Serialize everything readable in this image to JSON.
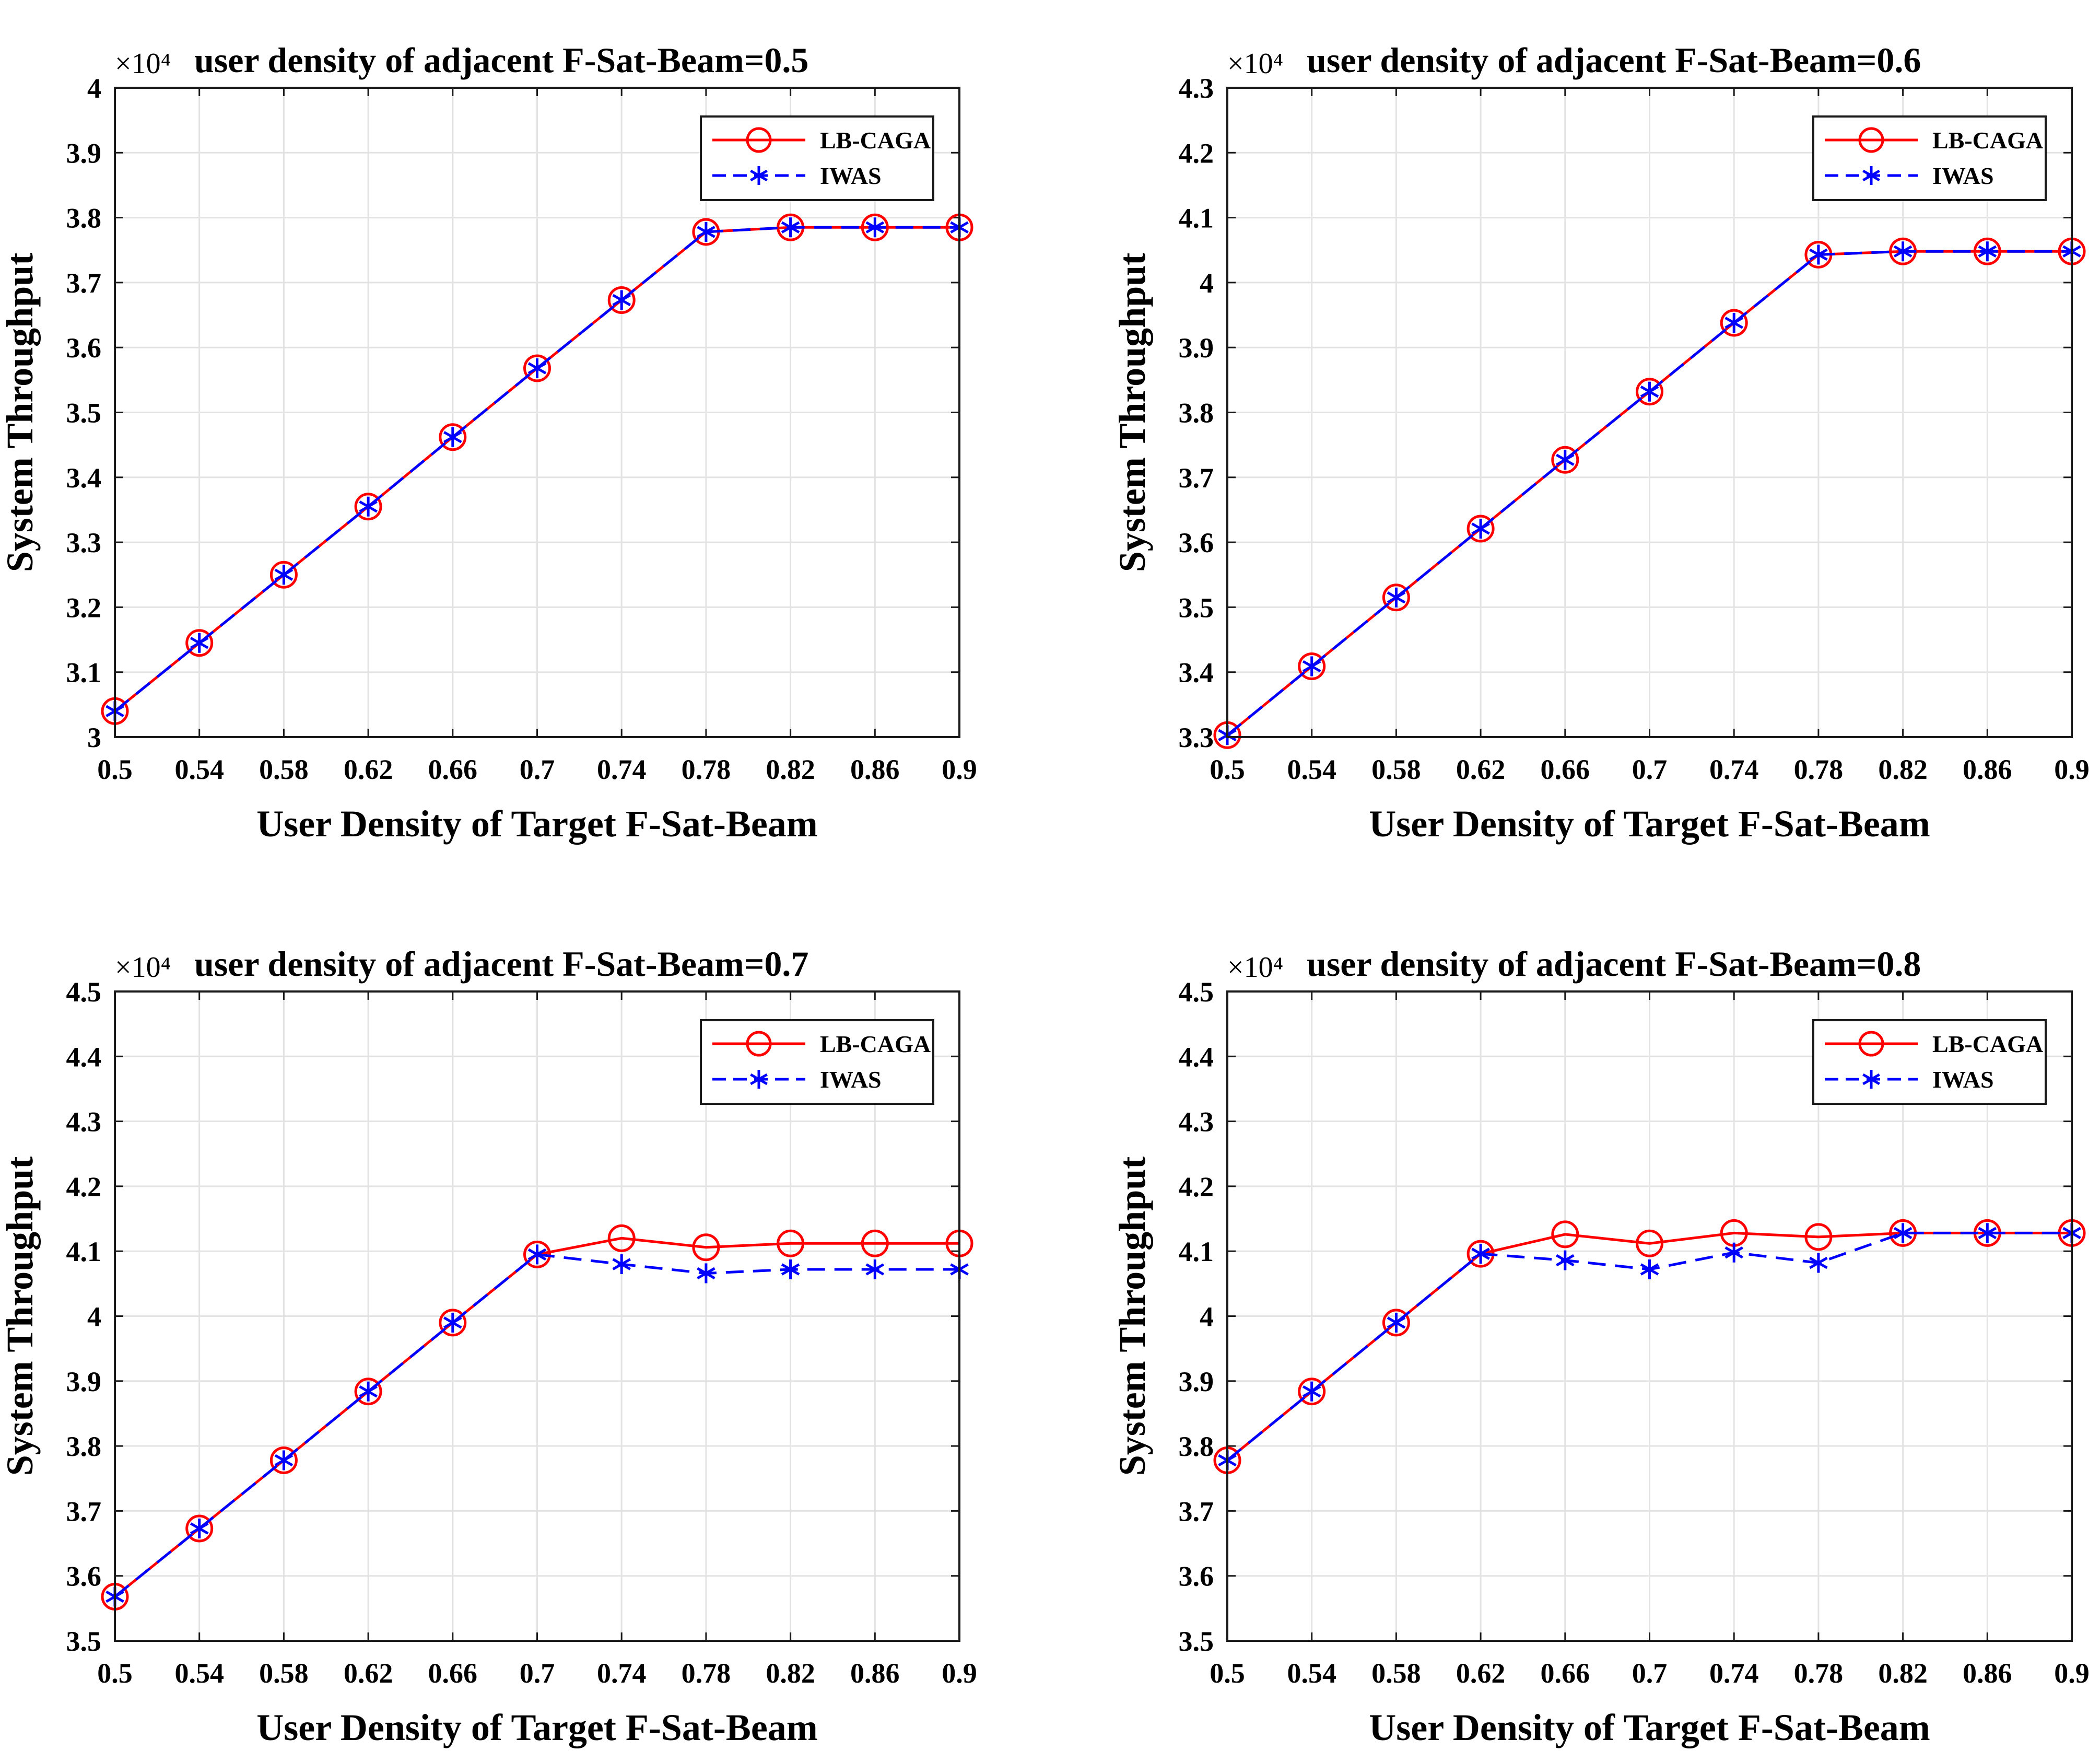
{
  "colors": {
    "lb_caga": "#ff0000",
    "iwas": "#0000ff"
  },
  "chart_data": [
    {
      "type": "line",
      "title": "user density of adjacent F-Sat-Beam=0.5",
      "exponent": "×10⁴",
      "xlabel": "User Density of Target F-Sat-Beam",
      "ylabel": "System Throughput",
      "x": [
        0.5,
        0.54,
        0.58,
        0.62,
        0.66,
        0.7,
        0.74,
        0.78,
        0.82,
        0.86,
        0.9
      ],
      "x_tick_labels": [
        "0.5",
        "0.54",
        "0.58",
        "0.62",
        "0.66",
        "0.7",
        "0.74",
        "0.78",
        "0.82",
        "0.86",
        "0.9"
      ],
      "xlim": [
        0.5,
        0.9
      ],
      "ylim": [
        3.0,
        4.0
      ],
      "y_ticks": [
        3.0,
        3.1,
        3.2,
        3.3,
        3.4,
        3.5,
        3.6,
        3.7,
        3.8,
        3.9,
        4.0
      ],
      "y_tick_labels": [
        "3",
        "3.1",
        "3.2",
        "3.3",
        "3.4",
        "3.5",
        "3.6",
        "3.7",
        "3.8",
        "3.9",
        "4"
      ],
      "grid": true,
      "legend_position": "top-right",
      "series": [
        {
          "name": "LB-CAGA",
          "color": "#ff0000",
          "style": "solid",
          "marker": "circle",
          "values": [
            3.04,
            3.145,
            3.25,
            3.355,
            3.462,
            3.568,
            3.673,
            3.778,
            3.785,
            3.785,
            3.785
          ]
        },
        {
          "name": "IWAS",
          "color": "#0000ff",
          "style": "dashed",
          "marker": "asterisk",
          "values": [
            3.04,
            3.145,
            3.25,
            3.355,
            3.462,
            3.568,
            3.673,
            3.778,
            3.785,
            3.785,
            3.785
          ]
        }
      ]
    },
    {
      "type": "line",
      "title": "user density of adjacent F-Sat-Beam=0.6",
      "exponent": "×10⁴",
      "xlabel": "User Density of Target F-Sat-Beam",
      "ylabel": "System Throughput",
      "x": [
        0.5,
        0.54,
        0.58,
        0.62,
        0.66,
        0.7,
        0.74,
        0.78,
        0.82,
        0.86,
        0.9
      ],
      "x_tick_labels": [
        "0.5",
        "0.54",
        "0.58",
        "0.62",
        "0.66",
        "0.7",
        "0.74",
        "0.78",
        "0.82",
        "0.86",
        "0.9"
      ],
      "xlim": [
        0.5,
        0.9
      ],
      "ylim": [
        3.3,
        4.3
      ],
      "y_ticks": [
        3.3,
        3.4,
        3.5,
        3.6,
        3.7,
        3.8,
        3.9,
        4.0,
        4.1,
        4.2,
        4.3
      ],
      "y_tick_labels": [
        "3.3",
        "3.4",
        "3.5",
        "3.6",
        "3.7",
        "3.8",
        "3.9",
        "4",
        "4.1",
        "4.2",
        "4.3"
      ],
      "grid": true,
      "legend_position": "top-right",
      "series": [
        {
          "name": "LB-CAGA",
          "color": "#ff0000",
          "style": "solid",
          "marker": "circle",
          "values": [
            3.303,
            3.409,
            3.515,
            3.621,
            3.727,
            3.832,
            3.938,
            4.043,
            4.048,
            4.048,
            4.048
          ]
        },
        {
          "name": "IWAS",
          "color": "#0000ff",
          "style": "dashed",
          "marker": "asterisk",
          "values": [
            3.303,
            3.409,
            3.515,
            3.621,
            3.727,
            3.832,
            3.938,
            4.043,
            4.048,
            4.048,
            4.048
          ]
        }
      ]
    },
    {
      "type": "line",
      "title": "user density of adjacent F-Sat-Beam=0.7",
      "exponent": "×10⁴",
      "xlabel": "User Density of Target F-Sat-Beam",
      "ylabel": "System Throughput",
      "x": [
        0.5,
        0.54,
        0.58,
        0.62,
        0.66,
        0.7,
        0.74,
        0.78,
        0.82,
        0.86,
        0.9
      ],
      "x_tick_labels": [
        "0.5",
        "0.54",
        "0.58",
        "0.62",
        "0.66",
        "0.7",
        "0.74",
        "0.78",
        "0.82",
        "0.86",
        "0.9"
      ],
      "xlim": [
        0.5,
        0.9
      ],
      "ylim": [
        3.5,
        4.5
      ],
      "y_ticks": [
        3.5,
        3.6,
        3.7,
        3.8,
        3.9,
        4.0,
        4.1,
        4.2,
        4.3,
        4.4,
        4.5
      ],
      "y_tick_labels": [
        "3.5",
        "3.6",
        "3.7",
        "3.8",
        "3.9",
        "4",
        "4.1",
        "4.2",
        "4.3",
        "4.4",
        "4.5"
      ],
      "grid": true,
      "legend_position": "top-right",
      "series": [
        {
          "name": "LB-CAGA",
          "color": "#ff0000",
          "style": "solid",
          "marker": "circle",
          "values": [
            3.568,
            3.673,
            3.778,
            3.884,
            3.99,
            4.095,
            4.12,
            4.106,
            4.112,
            4.112,
            4.112
          ]
        },
        {
          "name": "IWAS",
          "color": "#0000ff",
          "style": "dashed",
          "marker": "asterisk",
          "values": [
            3.568,
            3.673,
            3.778,
            3.884,
            3.99,
            4.095,
            4.08,
            4.066,
            4.072,
            4.072,
            4.072
          ]
        }
      ]
    },
    {
      "type": "line",
      "title": "user density of adjacent F-Sat-Beam=0.8",
      "exponent": "×10⁴",
      "xlabel": "User Density of Target F-Sat-Beam",
      "ylabel": "System Throughput",
      "x": [
        0.5,
        0.54,
        0.58,
        0.62,
        0.66,
        0.7,
        0.74,
        0.78,
        0.82,
        0.86,
        0.9
      ],
      "x_tick_labels": [
        "0.5",
        "0.54",
        "0.58",
        "0.62",
        "0.66",
        "0.7",
        "0.74",
        "0.78",
        "0.82",
        "0.86",
        "0.9"
      ],
      "xlim": [
        0.5,
        0.9
      ],
      "ylim": [
        3.5,
        4.5
      ],
      "y_ticks": [
        3.5,
        3.6,
        3.7,
        3.8,
        3.9,
        4.0,
        4.1,
        4.2,
        4.3,
        4.4,
        4.5
      ],
      "y_tick_labels": [
        "3.5",
        "3.6",
        "3.7",
        "3.8",
        "3.9",
        "4",
        "4.1",
        "4.2",
        "4.3",
        "4.4",
        "4.5"
      ],
      "grid": true,
      "legend_position": "top-right",
      "series": [
        {
          "name": "LB-CAGA",
          "color": "#ff0000",
          "style": "solid",
          "marker": "circle",
          "values": [
            3.778,
            3.884,
            3.99,
            4.096,
            4.126,
            4.112,
            4.128,
            4.122,
            4.128,
            4.128,
            4.128
          ]
        },
        {
          "name": "IWAS",
          "color": "#0000ff",
          "style": "dashed",
          "marker": "asterisk",
          "values": [
            3.778,
            3.884,
            3.99,
            4.096,
            4.086,
            4.072,
            4.098,
            4.082,
            4.128,
            4.128,
            4.128
          ]
        }
      ]
    }
  ]
}
